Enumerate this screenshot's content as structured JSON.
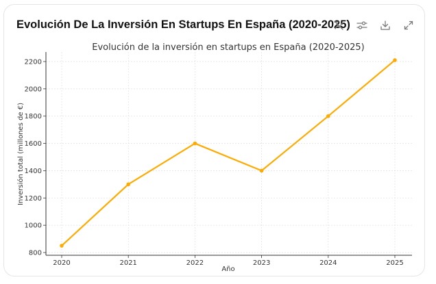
{
  "card": {
    "title": "Evolución De La Inversión En Startups En España (2020-2025)",
    "toolbar": [
      {
        "name": "chart-type-toggle",
        "icon": "chart-off-icon"
      },
      {
        "name": "settings",
        "icon": "sliders-icon"
      },
      {
        "name": "download",
        "icon": "download-icon"
      },
      {
        "name": "expand",
        "icon": "expand-icon"
      }
    ]
  },
  "colors": {
    "line": "#FFAA00",
    "grid": "#e3e3e3",
    "axis": "#333333"
  },
  "chart_data": {
    "type": "line",
    "title": "Evolución de la inversión en startups en España (2020-2025)",
    "xlabel": "Año",
    "ylabel": "Inversión total (millones de €)",
    "categories": [
      "2020",
      "2021",
      "2022",
      "2023",
      "2024",
      "2025"
    ],
    "series": [
      {
        "name": "Inversión total",
        "values": [
          850,
          1300,
          1600,
          1400,
          1800,
          2210
        ]
      }
    ],
    "yticks": [
      "800",
      "1000",
      "1200",
      "1400",
      "1600",
      "1800",
      "2000",
      "2200"
    ],
    "ylim": [
      780,
      2270
    ],
    "grid": true,
    "marker": "circle"
  }
}
